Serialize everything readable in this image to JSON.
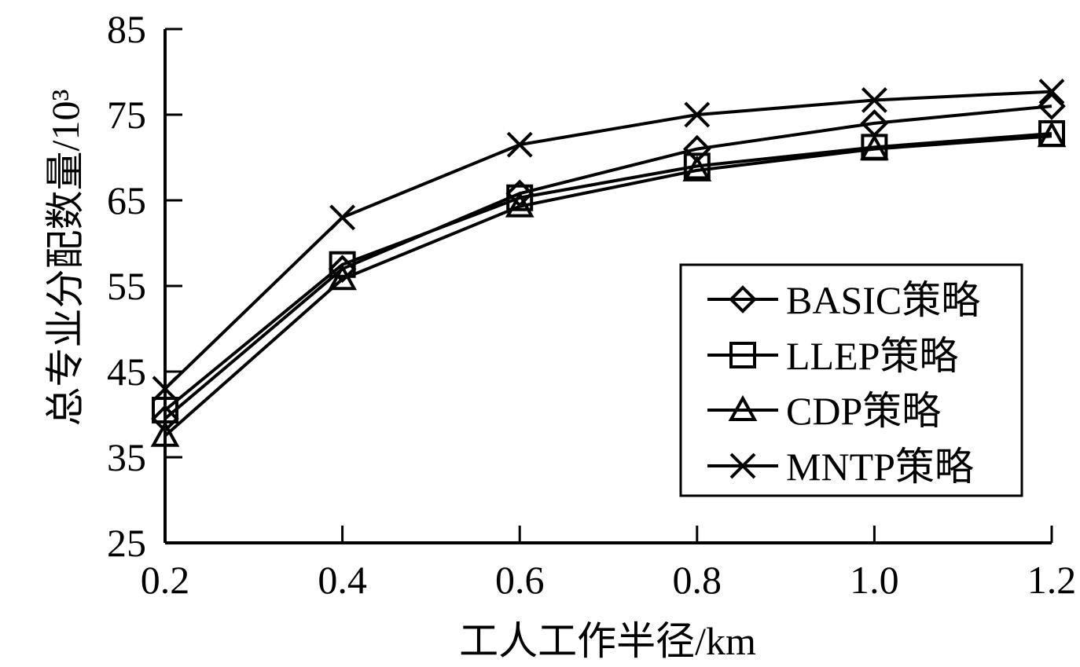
{
  "chart_data": {
    "type": "line",
    "xlabel": "工人工作半径/km",
    "ylabel": "总专业分配数量/10³",
    "x": [
      0.2,
      0.4,
      0.6,
      0.8,
      1.0,
      1.2
    ],
    "x_tick_labels": [
      "0.2",
      "0.4",
      "0.6",
      "0.8",
      "1.0",
      "1.2"
    ],
    "xlim": [
      0.2,
      1.2
    ],
    "ylim": [
      25,
      85
    ],
    "y_ticks": [
      25,
      35,
      45,
      55,
      65,
      75,
      85
    ],
    "grid": false,
    "legend_position": "right",
    "series": [
      {
        "name": "BASIC策略",
        "marker": "diamond",
        "values": [
          39.5,
          57.0,
          65.8,
          71.0,
          74.0,
          76.0
        ]
      },
      {
        "name": "LLEP策略",
        "marker": "square",
        "values": [
          40.5,
          57.5,
          65.3,
          69.0,
          71.2,
          72.8
        ]
      },
      {
        "name": "CDP策略",
        "marker": "triangle",
        "values": [
          37.5,
          55.8,
          64.3,
          68.5,
          71.0,
          72.5
        ]
      },
      {
        "name": "MNTP策略",
        "marker": "x",
        "values": [
          43.0,
          63.0,
          71.5,
          75.0,
          76.7,
          77.7
        ]
      }
    ]
  }
}
